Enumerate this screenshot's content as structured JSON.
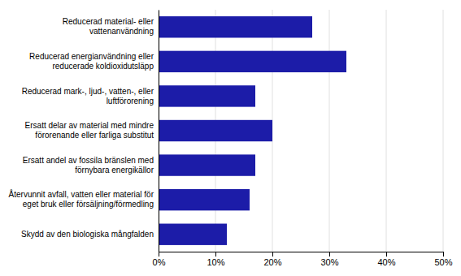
{
  "chart_data": {
    "type": "bar",
    "orientation": "horizontal",
    "categories": [
      "Skydd av den biologiska mångfalden",
      "Återvunnit avfall, vatten eller material för\neget bruk eller försäljning/förmedling",
      "Ersatt andel av fossila bränslen med\nförnybara energikällor",
      "Ersatt delar av material med mindre\nförorenande eller farliga substitut",
      "Reducerad mark-, ljud-, vatten-, eller\nluftförorening",
      "Reducerad energianvändning eller\nreducerade koldioxidutsläpp",
      "Reducerad material- eller\nvattenanvändning"
    ],
    "values": [
      12,
      16,
      17,
      20,
      17,
      33,
      27
    ],
    "color": "#1c1ca8",
    "xlim": [
      0,
      50
    ],
    "xticks": [
      {
        "value": 0,
        "label": "0%"
      },
      {
        "value": 10,
        "label": "10%"
      },
      {
        "value": 20,
        "label": "20%"
      },
      {
        "value": 30,
        "label": "30%"
      },
      {
        "value": 40,
        "label": "40%"
      },
      {
        "value": 50,
        "label": "50%"
      }
    ],
    "grid": true
  }
}
